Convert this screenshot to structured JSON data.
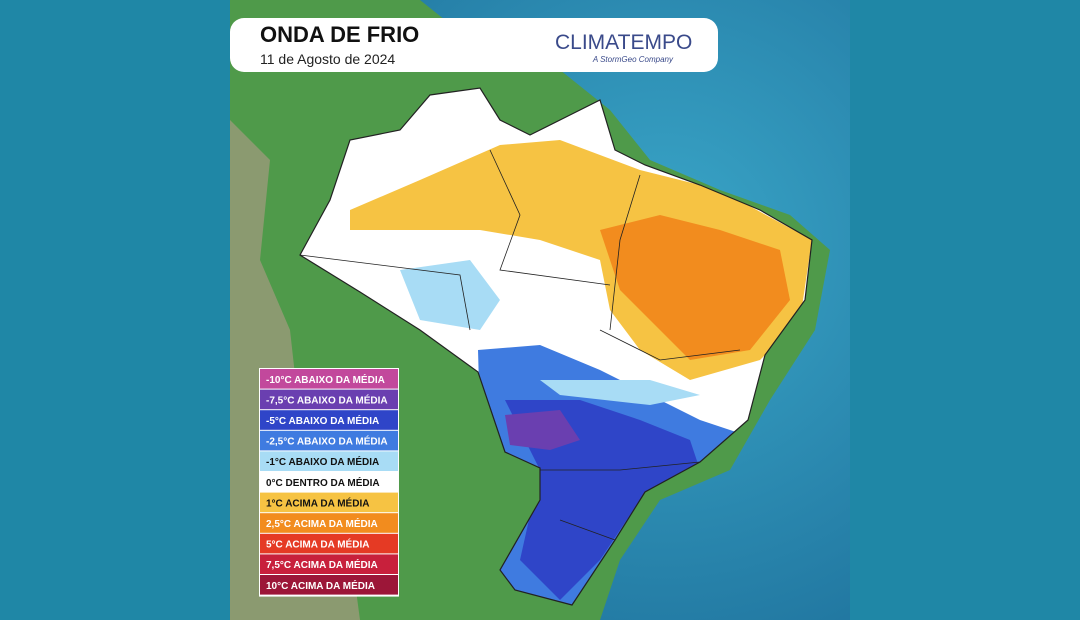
{
  "header": {
    "title": "ONDA DE FRIO",
    "date": "11 de Agosto de 2024",
    "brand": "CLIMATEMPO",
    "brand_tagline": "A StormGeo Company"
  },
  "legend": {
    "items": [
      {
        "label": "-10°C ABAIXO DA MÉDIA",
        "color": "#c2489c"
      },
      {
        "label": "-7,5°C ABAIXO DA MÉDIA",
        "color": "#6a3fb0"
      },
      {
        "label": "-5°C ABAIXO DA MÉDIA",
        "color": "#2f45c8"
      },
      {
        "label": "-2,5°C ABAIXO DA MÉDIA",
        "color": "#3f7be0"
      },
      {
        "label": "-1°C ABAIXO DA MÉDIA",
        "color": "#a8dcf5"
      },
      {
        "label": "0°C DENTRO DA MÉDIA",
        "color": "#ffffff"
      },
      {
        "label": "1°C ACIMA DA MÉDIA",
        "color": "#f6c343"
      },
      {
        "label": "2,5°C ACIMA DA MÉDIA",
        "color": "#f28c1e"
      },
      {
        "label": "5°C ACIMA DA MÉDIA",
        "color": "#e53a24"
      },
      {
        "label": "7,5°C ACIMA DA MÉDIA",
        "color": "#c8203c"
      },
      {
        "label": "10°C ACIMA DA MÉDIA",
        "color": "#9c1638"
      }
    ]
  }
}
